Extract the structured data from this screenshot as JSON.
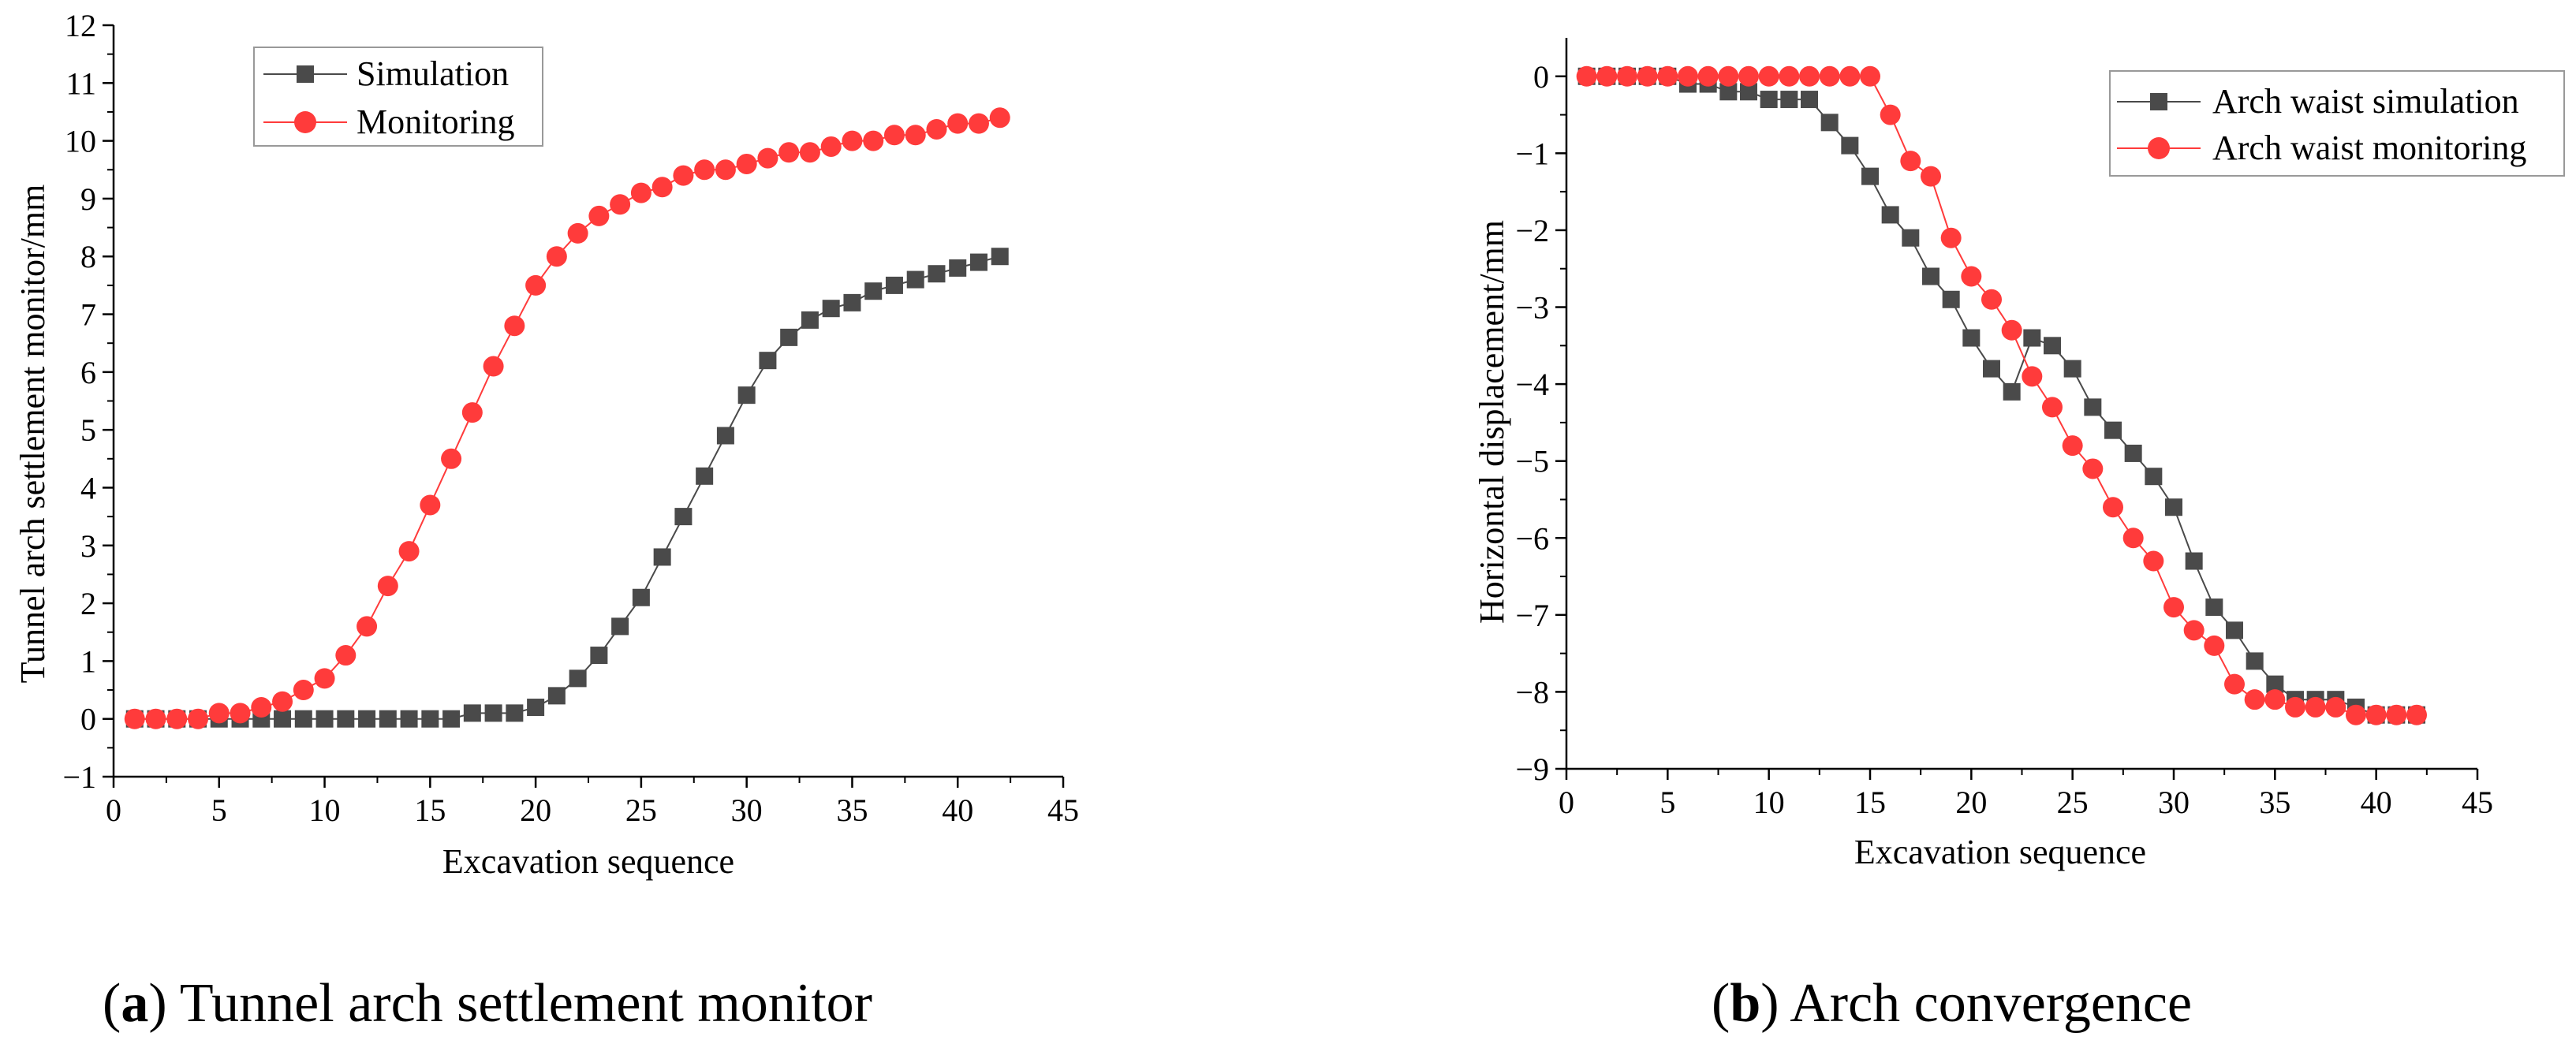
{
  "chart_data": [
    {
      "type": "line",
      "id": "a",
      "xlabel": "Excavation sequence",
      "ylabel": "Tunnel arch settlement monitor/mm",
      "xlim": [
        0,
        45
      ],
      "ylim": [
        -1,
        12
      ],
      "xticks": [
        0,
        5,
        10,
        15,
        20,
        25,
        30,
        35,
        40,
        45
      ],
      "yticks": [
        -1,
        0,
        1,
        2,
        3,
        4,
        5,
        6,
        7,
        8,
        9,
        10,
        11,
        12
      ],
      "legend_position": "top-left",
      "caption_letter": "(a)",
      "caption_text": "Tunnel arch settlement monitor",
      "x": [
        1,
        2,
        3,
        4,
        5,
        6,
        7,
        8,
        9,
        10,
        11,
        12,
        13,
        14,
        15,
        16,
        17,
        18,
        19,
        20,
        21,
        22,
        23,
        24,
        25,
        26,
        27,
        28,
        29,
        30,
        31,
        32,
        33,
        34,
        35,
        36,
        37,
        38,
        39,
        40,
        41,
        42
      ],
      "series": [
        {
          "name": "Simulation",
          "marker": "square",
          "color": "#4a4a4a",
          "values": [
            0,
            0,
            0,
            0,
            0,
            0,
            0,
            0,
            0,
            0,
            0,
            0,
            0,
            0,
            0,
            0,
            0.1,
            0.1,
            0.1,
            0.2,
            0.4,
            0.7,
            1.1,
            1.6,
            2.1,
            2.8,
            3.5,
            4.2,
            4.9,
            5.6,
            6.2,
            6.6,
            6.9,
            7.1,
            7.2,
            7.4,
            7.5,
            7.6,
            7.7,
            7.8,
            7.9,
            8.0
          ]
        },
        {
          "name": "Monitoring",
          "marker": "circle",
          "color": "#ff3b3b",
          "values": [
            0,
            0,
            0,
            0,
            0.1,
            0.1,
            0.2,
            0.3,
            0.5,
            0.7,
            1.1,
            1.6,
            2.3,
            2.9,
            3.7,
            4.5,
            5.3,
            6.1,
            6.8,
            7.5,
            8.0,
            8.4,
            8.7,
            8.9,
            9.1,
            9.2,
            9.4,
            9.5,
            9.5,
            9.6,
            9.7,
            9.8,
            9.8,
            9.9,
            10.0,
            10.0,
            10.1,
            10.1,
            10.2,
            10.3,
            10.3,
            10.4
          ]
        }
      ]
    },
    {
      "type": "line",
      "id": "b",
      "xlabel": "Excavation sequence",
      "ylabel": "Horizontal displacement/mm",
      "xlim": [
        0,
        45
      ],
      "ylim": [
        -9,
        0.5
      ],
      "xticks": [
        0,
        5,
        10,
        15,
        20,
        25,
        30,
        35,
        40,
        45
      ],
      "yticks": [
        0,
        -1,
        -2,
        -3,
        -4,
        -5,
        -6,
        -7,
        -8,
        -9
      ],
      "legend_position": "top-right",
      "caption_letter": "(b)",
      "caption_text": "Arch convergence",
      "x": [
        1,
        2,
        3,
        4,
        5,
        6,
        7,
        8,
        9,
        10,
        11,
        12,
        13,
        14,
        15,
        16,
        17,
        18,
        19,
        20,
        21,
        22,
        23,
        24,
        25,
        26,
        27,
        28,
        29,
        30,
        31,
        32,
        33,
        34,
        35,
        36,
        37,
        38,
        39,
        40,
        41,
        42
      ],
      "series": [
        {
          "name": "Arch waist simulation",
          "marker": "square",
          "color": "#4a4a4a",
          "values": [
            0,
            0,
            0,
            0,
            0,
            -0.1,
            -0.1,
            -0.2,
            -0.2,
            -0.3,
            -0.3,
            -0.3,
            -0.6,
            -0.9,
            -1.3,
            -1.8,
            -2.1,
            -2.6,
            -2.9,
            -3.4,
            -3.8,
            -4.1,
            -3.4,
            -3.5,
            -3.8,
            -4.3,
            -4.6,
            -4.9,
            -5.2,
            -5.6,
            -6.3,
            -6.9,
            -7.2,
            -7.6,
            -7.9,
            -8.1,
            -8.1,
            -8.1,
            -8.2,
            -8.3,
            -8.3,
            -8.3
          ]
        },
        {
          "name": "Arch waist monitoring",
          "marker": "circle",
          "color": "#ff3b3b",
          "values": [
            0,
            0,
            0,
            0,
            0,
            0,
            0,
            0,
            0,
            0,
            0,
            0,
            0,
            0,
            0,
            -0.5,
            -1.1,
            -1.3,
            -2.1,
            -2.6,
            -2.9,
            -3.3,
            -3.9,
            -4.3,
            -4.8,
            -5.1,
            -5.6,
            -6.0,
            -6.3,
            -6.9,
            -7.2,
            -7.4,
            -7.9,
            -8.1,
            -8.1,
            -8.2,
            -8.2,
            -8.2,
            -8.3,
            -8.3,
            -8.3,
            -8.3
          ]
        }
      ]
    }
  ]
}
